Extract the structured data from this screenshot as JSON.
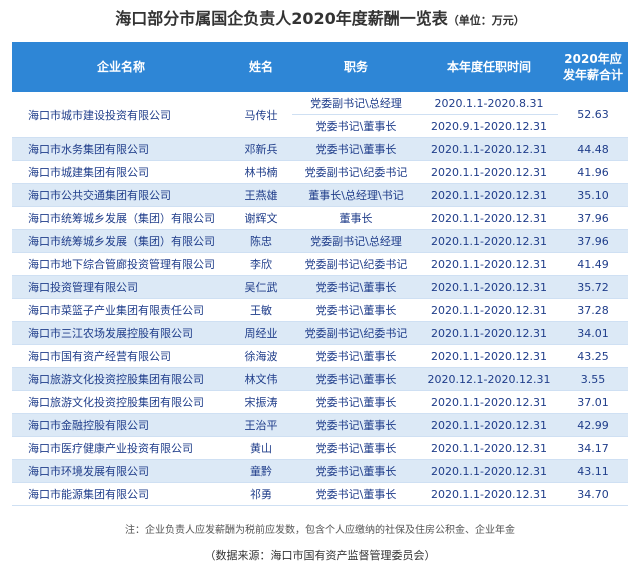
{
  "title": "海口部分市属国企负责人2020年度薪酬一览表",
  "unit": "（单位：万元）",
  "headers": {
    "company": "企业名称",
    "name": "姓名",
    "position": "职务",
    "term": "本年度任职时间",
    "salary": "2020年应发年薪合计"
  },
  "rows": [
    {
      "company": "海口市城市建设投资有限公司",
      "name": "马传壮",
      "position": "党委副书记\\总经理",
      "term": "2020.1.1-2020.8.31",
      "salary": "52.63"
    },
    {
      "company": "",
      "name": "",
      "position": "党委书记\\董事长",
      "term": "2020.9.1-2020.12.31",
      "salary": ""
    },
    {
      "company": "海口市水务集团有限公司",
      "name": "邓新兵",
      "position": "党委书记\\董事长",
      "term": "2020.1.1-2020.12.31",
      "salary": "44.48"
    },
    {
      "company": "海口市城建集团有限公司",
      "name": "林书楠",
      "position": "党委副书记\\纪委书记",
      "term": "2020.1.1-2020.12.31",
      "salary": "41.96"
    },
    {
      "company": "海口市公共交通集团有限公司",
      "name": "王燕雄",
      "position": "董事长\\总经理\\书记",
      "term": "2020.1.1-2020.12.31",
      "salary": "35.10"
    },
    {
      "company": "海口市统筹城乡发展（集团）有限公司",
      "name": "谢辉文",
      "position": "董事长",
      "term": "2020.1.1-2020.12.31",
      "salary": "37.96"
    },
    {
      "company": "海口市统筹城乡发展（集团）有限公司",
      "name": "陈忠",
      "position": "党委副书记\\总经理",
      "term": "2020.1.1-2020.12.31",
      "salary": "37.96"
    },
    {
      "company": "海口市地下综合管廊投资管理有限公司",
      "name": "李欣",
      "position": "党委副书记\\纪委书记",
      "term": "2020.1.1-2020.12.31",
      "salary": "41.49"
    },
    {
      "company": "海口投资管理有限公司",
      "name": "吴仁武",
      "position": "党委书记\\董事长",
      "term": "2020.1.1-2020.12.31",
      "salary": "35.72"
    },
    {
      "company": "海口市菜篮子产业集团有限责任公司",
      "name": "王敏",
      "position": "党委书记\\董事长",
      "term": "2020.1.1-2020.12.31",
      "salary": "37.28"
    },
    {
      "company": "海口市三江农场发展控股有限公司",
      "name": "周经业",
      "position": "党委副书记\\纪委书记",
      "term": "2020.1.1-2020.12.31",
      "salary": "34.01"
    },
    {
      "company": "海口市国有资产经营有限公司",
      "name": "徐海波",
      "position": "党委书记\\董事长",
      "term": "2020.1.1-2020.12.31",
      "salary": "43.25"
    },
    {
      "company": "海口旅游文化投资控股集团有限公司",
      "name": "林文伟",
      "position": "党委书记\\董事长",
      "term": "2020.12.1-2020.12.31",
      "salary": "3.55"
    },
    {
      "company": "海口旅游文化投资控股集团有限公司",
      "name": "宋振涛",
      "position": "党委书记\\董事长",
      "term": "2020.1.1-2020.12.31",
      "salary": "37.01"
    },
    {
      "company": "海口市金融控股有限公司",
      "name": "王治平",
      "position": "党委书记\\董事长",
      "term": "2020.1.1-2020.12.31",
      "salary": "42.99"
    },
    {
      "company": "海口市医疗健康产业投资有限公司",
      "name": "黄山",
      "position": "党委书记\\董事长",
      "term": "2020.1.1-2020.12.31",
      "salary": "34.17"
    },
    {
      "company": "海口市环境发展有限公司",
      "name": "童黔",
      "position": "党委书记\\董事长",
      "term": "2020.1.1-2020.12.31",
      "salary": "43.11"
    },
    {
      "company": "海口市能源集团有限公司",
      "name": "祁勇",
      "position": "党委书记\\董事长",
      "term": "2020.1.1-2020.12.31",
      "salary": "34.70"
    }
  ],
  "note": "注：企业负责人应发薪酬为税前应发数，包含个人应缴纳的社保及住房公积金、企业年金",
  "source": "（数据来源：海口市国有资产监督管理委员会）"
}
